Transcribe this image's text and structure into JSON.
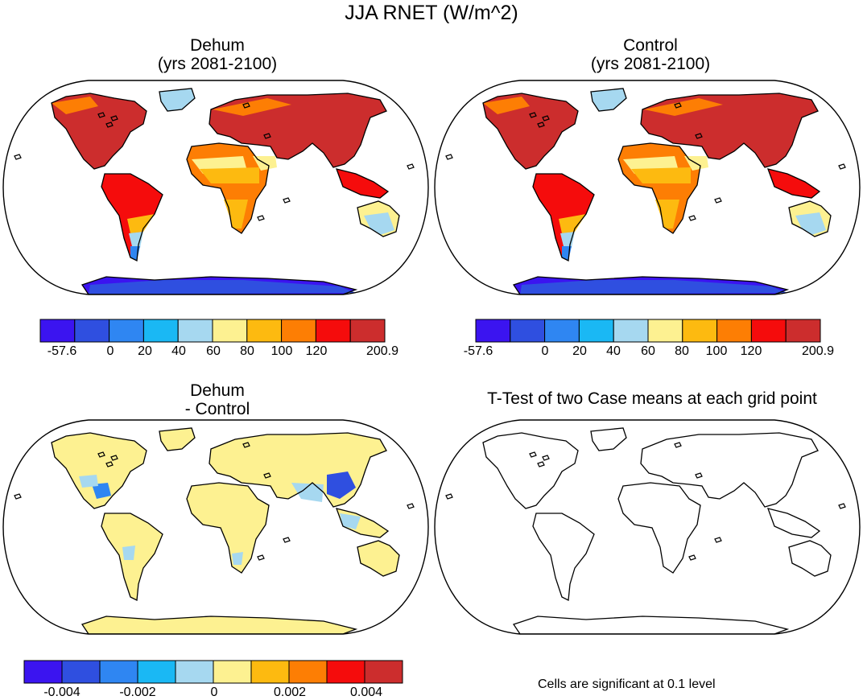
{
  "figure": {
    "title": "JJA RNET (W/m^2)"
  },
  "panels": [
    {
      "id": "dehum",
      "title_line1": "Dehum",
      "title_line2": "(yrs 2081-2100)",
      "fill": "warm"
    },
    {
      "id": "control",
      "title_line1": "Control",
      "title_line2": "(yrs 2081-2100)",
      "fill": "warm"
    },
    {
      "id": "diff",
      "title_line1": "Dehum",
      "title_line2": "- Control",
      "fill": "diff"
    },
    {
      "id": "ttest",
      "title_line1": "T-Test of two Case means at each grid point",
      "title_line2": "",
      "fill": "none"
    }
  ],
  "colorbars": {
    "rnet": {
      "colors": [
        "#3b14f0",
        "#2f4fe0",
        "#2f86f2",
        "#1ab8f4",
        "#a6d8f0",
        "#fdf191",
        "#fdba10",
        "#fd7e04",
        "#f50c0c",
        "#cc2d2d"
      ],
      "labels": [
        "-57.6",
        "0",
        "20",
        "40",
        "60",
        "80",
        "100",
        "120",
        "200.9"
      ]
    },
    "diff": {
      "colors": [
        "#3b14f0",
        "#2f4fe0",
        "#2f86f2",
        "#1ab8f4",
        "#a6d8f0",
        "#fdf191",
        "#fdba10",
        "#fd7e04",
        "#f50c0c",
        "#cc2d2d"
      ],
      "labels": [
        "-0.004",
        "-0.002",
        "0",
        "0.002",
        "0.004"
      ]
    }
  },
  "notes": {
    "significance": "Cells are significant at 0.1 level"
  }
}
